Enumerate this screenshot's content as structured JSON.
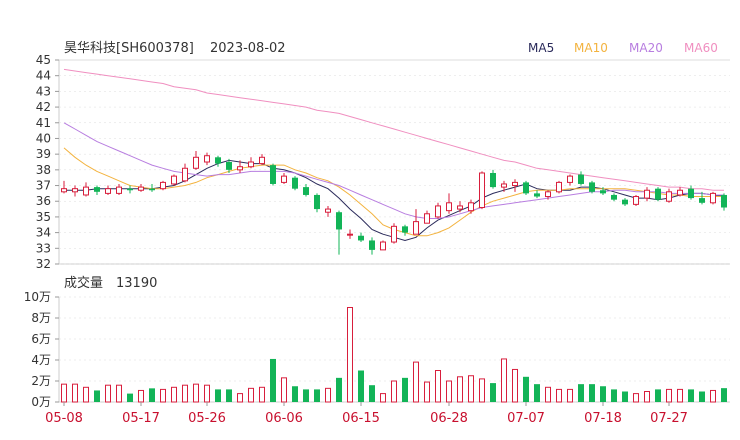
{
  "header": {
    "stock_name": "昊华科技[SH600378]",
    "date": "2023-08-02"
  },
  "colors": {
    "up": "#d81e3c",
    "down": "#12b457",
    "ma5": "#2b2b5b",
    "ma10": "#f3b33f",
    "ma20": "#b87ee0",
    "ma60": "#f08fc0",
    "axis_text": "#333333",
    "date_text": "#c8102e",
    "grid": "#dddddd"
  },
  "chart_data": [
    {
      "type": "candlestick",
      "title": "昊华科技[SH600378] 2023-08-02",
      "legend": [
        "MA5",
        "MA10",
        "MA20",
        "MA60"
      ],
      "legend_position": "top-right",
      "ylim": [
        32,
        45
      ],
      "y_ticks": [
        "45",
        "44",
        "43",
        "42",
        "41",
        "40",
        "39",
        "38",
        "37",
        "36",
        "35",
        "34",
        "33",
        "32"
      ],
      "x_tick_labels": [
        "05-08",
        "05-17",
        "05-26",
        "06-06",
        "06-15",
        "06-28",
        "07-07",
        "07-18",
        "07-27"
      ],
      "x_tick_indices": [
        0,
        7,
        13,
        20,
        27,
        35,
        42,
        49,
        55
      ],
      "dates": [
        "05-08",
        "05-09",
        "05-10",
        "05-11",
        "05-12",
        "05-15",
        "05-16",
        "05-17",
        "05-18",
        "05-19",
        "05-22",
        "05-23",
        "05-24",
        "05-25",
        "05-26",
        "05-29",
        "05-30",
        "05-31",
        "06-01",
        "06-02",
        "06-05",
        "06-06",
        "06-07",
        "06-08",
        "06-09",
        "06-12",
        "06-13",
        "06-14",
        "06-15",
        "06-16",
        "06-19",
        "06-20",
        "06-21",
        "06-26",
        "06-27",
        "06-28",
        "06-29",
        "06-30",
        "07-03",
        "07-04",
        "07-05",
        "07-06",
        "07-07",
        "07-10",
        "07-11",
        "07-12",
        "07-13",
        "07-14",
        "07-17",
        "07-18",
        "07-19",
        "07-20",
        "07-21",
        "07-24",
        "07-25",
        "07-26",
        "07-27",
        "07-28",
        "07-31",
        "08-01",
        "08-02"
      ],
      "ohlc": [
        [
          36.6,
          37.3,
          36.5,
          36.8
        ],
        [
          36.6,
          37.0,
          36.3,
          36.8
        ],
        [
          36.4,
          37.2,
          36.3,
          36.9
        ],
        [
          36.9,
          37.0,
          36.4,
          36.6
        ],
        [
          36.5,
          37.0,
          36.4,
          36.8
        ],
        [
          36.5,
          37.1,
          36.4,
          36.9
        ],
        [
          36.8,
          37.0,
          36.5,
          36.7
        ],
        [
          36.7,
          37.1,
          36.6,
          36.9
        ],
        [
          36.8,
          37.1,
          36.6,
          36.7
        ],
        [
          36.8,
          37.3,
          36.7,
          37.2
        ],
        [
          37.1,
          37.7,
          37.0,
          37.6
        ],
        [
          37.3,
          38.4,
          37.2,
          38.1
        ],
        [
          38.1,
          39.2,
          38.0,
          38.8
        ],
        [
          38.5,
          39.1,
          38.3,
          38.9
        ],
        [
          38.8,
          38.9,
          38.2,
          38.4
        ],
        [
          38.5,
          38.7,
          37.8,
          38.0
        ],
        [
          38.0,
          38.6,
          37.8,
          38.2
        ],
        [
          38.2,
          38.8,
          38.1,
          38.5
        ],
        [
          38.4,
          39.0,
          38.3,
          38.8
        ],
        [
          38.3,
          38.4,
          37.0,
          37.1
        ],
        [
          37.2,
          37.8,
          37.1,
          37.6
        ],
        [
          37.5,
          37.6,
          36.7,
          36.8
        ],
        [
          36.9,
          37.1,
          36.3,
          36.4
        ],
        [
          36.4,
          36.5,
          35.3,
          35.5
        ],
        [
          35.3,
          35.7,
          35.0,
          35.5
        ],
        [
          35.3,
          35.4,
          32.6,
          34.2
        ],
        [
          33.9,
          34.2,
          33.6,
          33.9
        ],
        [
          33.8,
          34.0,
          33.4,
          33.5
        ],
        [
          33.5,
          33.7,
          32.6,
          32.9
        ],
        [
          32.9,
          33.5,
          32.9,
          33.4
        ],
        [
          33.4,
          34.6,
          33.3,
          34.4
        ],
        [
          34.4,
          34.5,
          33.8,
          34.0
        ],
        [
          33.9,
          35.5,
          33.9,
          34.7
        ],
        [
          34.6,
          35.4,
          34.6,
          35.2
        ],
        [
          35.0,
          35.9,
          34.9,
          35.7
        ],
        [
          35.4,
          36.5,
          35.2,
          35.9
        ],
        [
          35.5,
          36.0,
          35.3,
          35.7
        ],
        [
          35.4,
          36.1,
          35.2,
          35.9
        ],
        [
          35.6,
          37.9,
          35.5,
          37.8
        ],
        [
          37.8,
          38.0,
          36.8,
          36.9
        ],
        [
          36.9,
          37.3,
          36.6,
          37.1
        ],
        [
          37.0,
          37.4,
          36.6,
          37.2
        ],
        [
          37.2,
          37.3,
          36.4,
          36.5
        ],
        [
          36.5,
          36.7,
          36.2,
          36.3
        ],
        [
          36.3,
          36.7,
          36.1,
          36.6
        ],
        [
          36.6,
          37.3,
          36.5,
          37.2
        ],
        [
          37.2,
          37.7,
          37.0,
          37.6
        ],
        [
          37.7,
          37.9,
          37.0,
          37.1
        ],
        [
          37.2,
          37.3,
          36.5,
          36.6
        ],
        [
          36.7,
          36.9,
          36.4,
          36.5
        ],
        [
          36.4,
          36.5,
          36.0,
          36.1
        ],
        [
          36.1,
          36.2,
          35.7,
          35.8
        ],
        [
          35.8,
          36.4,
          35.7,
          36.3
        ],
        [
          36.2,
          36.9,
          36.0,
          36.7
        ],
        [
          36.8,
          36.9,
          36.0,
          36.1
        ],
        [
          36.0,
          36.8,
          35.9,
          36.6
        ],
        [
          36.4,
          36.9,
          36.3,
          36.7
        ],
        [
          36.8,
          37.0,
          36.1,
          36.2
        ],
        [
          36.2,
          36.6,
          35.8,
          35.9
        ],
        [
          35.9,
          36.6,
          35.8,
          36.5
        ],
        [
          36.4,
          36.5,
          35.4,
          35.6
        ]
      ],
      "ma_series": [
        {
          "name": "MA5",
          "values": [
            36.7,
            36.7,
            36.7,
            36.8,
            36.8,
            36.8,
            36.8,
            36.8,
            36.8,
            36.9,
            37.0,
            37.3,
            37.7,
            38.1,
            38.4,
            38.6,
            38.5,
            38.4,
            38.4,
            38.1,
            38.0,
            37.8,
            37.5,
            37.1,
            36.8,
            36.2,
            35.5,
            34.9,
            34.2,
            33.9,
            33.7,
            33.5,
            33.7,
            34.3,
            34.8,
            35.1,
            35.4,
            35.7,
            36.2,
            36.5,
            36.7,
            36.9,
            37.1,
            36.8,
            36.7,
            36.7,
            36.7,
            36.9,
            36.9,
            36.8,
            36.6,
            36.4,
            36.2,
            36.2,
            36.1,
            36.2,
            36.4,
            36.5,
            36.5,
            36.4,
            36.3
          ]
        },
        {
          "name": "MA10",
          "values": [
            39.4,
            38.8,
            38.3,
            37.9,
            37.6,
            37.3,
            37.0,
            36.9,
            36.8,
            36.8,
            36.9,
            37.0,
            37.2,
            37.5,
            37.7,
            37.9,
            38.1,
            38.2,
            38.3,
            38.3,
            38.3,
            38.0,
            37.8,
            37.5,
            37.3,
            36.9,
            36.4,
            35.8,
            35.2,
            34.5,
            34.2,
            34.0,
            33.8,
            33.8,
            34.0,
            34.3,
            34.8,
            35.3,
            35.7,
            36.0,
            36.2,
            36.4,
            36.6,
            36.7,
            36.7,
            36.7,
            36.8,
            36.8,
            36.8,
            36.8,
            36.8,
            36.8,
            36.7,
            36.6,
            36.5,
            36.4,
            36.4,
            36.3,
            36.3,
            36.3,
            36.3
          ]
        },
        {
          "name": "MA20",
          "values": [
            41.0,
            40.6,
            40.2,
            39.8,
            39.5,
            39.2,
            38.9,
            38.6,
            38.3,
            38.1,
            37.9,
            37.8,
            37.7,
            37.6,
            37.7,
            37.7,
            37.8,
            37.9,
            37.9,
            37.9,
            37.9,
            37.8,
            37.6,
            37.4,
            37.2,
            37.0,
            36.7,
            36.4,
            36.1,
            35.8,
            35.5,
            35.2,
            35.0,
            34.9,
            34.9,
            35.0,
            35.2,
            35.4,
            35.6,
            35.7,
            35.8,
            35.9,
            36.0,
            36.1,
            36.2,
            36.3,
            36.4,
            36.5,
            36.6,
            36.6,
            36.7,
            36.7,
            36.6,
            36.6,
            36.6,
            36.5,
            36.5,
            36.5,
            36.5,
            36.4,
            36.4
          ]
        },
        {
          "name": "MA60",
          "values": [
            44.4,
            44.3,
            44.2,
            44.1,
            44.0,
            43.9,
            43.8,
            43.7,
            43.6,
            43.5,
            43.3,
            43.2,
            43.1,
            42.9,
            42.8,
            42.7,
            42.6,
            42.5,
            42.4,
            42.3,
            42.2,
            42.1,
            42.0,
            41.8,
            41.7,
            41.6,
            41.4,
            41.2,
            41.0,
            40.8,
            40.6,
            40.4,
            40.2,
            40.0,
            39.8,
            39.6,
            39.4,
            39.2,
            39.0,
            38.8,
            38.6,
            38.5,
            38.3,
            38.1,
            38.0,
            37.9,
            37.8,
            37.7,
            37.6,
            37.5,
            37.4,
            37.3,
            37.2,
            37.1,
            37.0,
            36.9,
            36.9,
            36.8,
            36.8,
            36.7,
            36.7
          ]
        }
      ]
    },
    {
      "type": "bar",
      "title": "成交量 13190",
      "volume_label": "成交量",
      "volume_value": "13190",
      "ylim": [
        0,
        100000
      ],
      "y_ticks": [
        {
          "label": "10万",
          "value": 100000
        },
        {
          "label": "8万",
          "value": 80000
        },
        {
          "label": "6万",
          "value": 60000
        },
        {
          "label": "4万",
          "value": 40000
        },
        {
          "label": "2万",
          "value": 20000
        },
        {
          "label": "0万",
          "value": 0
        }
      ],
      "values": [
        17000,
        17000,
        14000,
        11000,
        16000,
        16000,
        8000,
        11000,
        13000,
        12000,
        14000,
        16000,
        17000,
        16000,
        12000,
        12000,
        8000,
        13000,
        14000,
        41000,
        23000,
        15000,
        12000,
        12000,
        13000,
        23000,
        90000,
        30000,
        16000,
        8000,
        20000,
        23000,
        38000,
        19000,
        30000,
        20000,
        24000,
        25000,
        22000,
        18000,
        41000,
        31000,
        24000,
        17000,
        14000,
        12000,
        12000,
        17000,
        17000,
        15000,
        12000,
        10000,
        8000,
        10000,
        12000,
        12000,
        12000,
        12000,
        10000,
        11000,
        13190
      ]
    }
  ]
}
